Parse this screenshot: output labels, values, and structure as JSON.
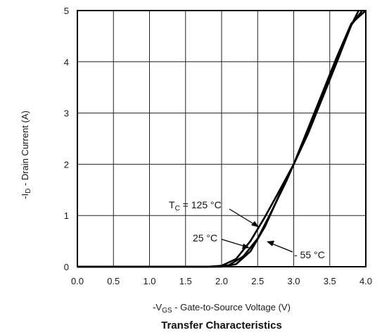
{
  "chart_data": {
    "type": "line",
    "title": "Transfer Characteristics",
    "xlabel": {
      "prefix": "-V",
      "sub": "GS",
      "suffix": " - Gate-to-Source Voltage (V)"
    },
    "ylabel": {
      "prefix": "-I",
      "sub": "D",
      "suffix": " - Drain Current (A)"
    },
    "xlim": [
      0,
      4
    ],
    "ylim": [
      0,
      5
    ],
    "x_ticks": [
      "0.0",
      "0.5",
      "1.0",
      "1.5",
      "2.0",
      "2.5",
      "3.0",
      "3.5",
      "4.0"
    ],
    "y_ticks": [
      "0",
      "1",
      "2",
      "3",
      "4",
      "5"
    ],
    "grid": true,
    "series": [
      {
        "name": "T_C = 125 °C",
        "x": [
          0.0,
          1.0,
          1.8,
          2.0,
          2.2,
          2.4,
          2.6,
          2.8,
          3.0,
          3.2,
          3.4,
          3.6,
          3.8,
          3.9
        ],
        "y": [
          0.0,
          0.0,
          0.0,
          0.02,
          0.15,
          0.5,
          0.97,
          1.48,
          2.0,
          2.6,
          3.3,
          4.0,
          4.72,
          5.0
        ]
      },
      {
        "name": "25 °C",
        "x": [
          0.0,
          1.0,
          1.9,
          2.1,
          2.3,
          2.5,
          2.7,
          2.9,
          3.0,
          3.2,
          3.4,
          3.6,
          3.8,
          3.95
        ],
        "y": [
          0.0,
          0.0,
          0.0,
          0.03,
          0.2,
          0.55,
          1.1,
          1.68,
          2.0,
          2.65,
          3.35,
          4.05,
          4.72,
          5.0
        ]
      },
      {
        "name": "-55 °C",
        "x": [
          0.0,
          1.0,
          2.0,
          2.2,
          2.4,
          2.6,
          2.8,
          3.0,
          3.2,
          3.4,
          3.6,
          3.8,
          4.0
        ],
        "y": [
          0.0,
          0.0,
          0.0,
          0.05,
          0.3,
          0.78,
          1.4,
          2.0,
          2.7,
          3.4,
          4.1,
          4.75,
          5.0
        ]
      }
    ],
    "annotations": {
      "tc_prefix": "T",
      "tc_sub": "C",
      "tc_suffix": " = 125 °C",
      "mid_label": "25 °C",
      "cold_label": "- 55 °C"
    }
  }
}
